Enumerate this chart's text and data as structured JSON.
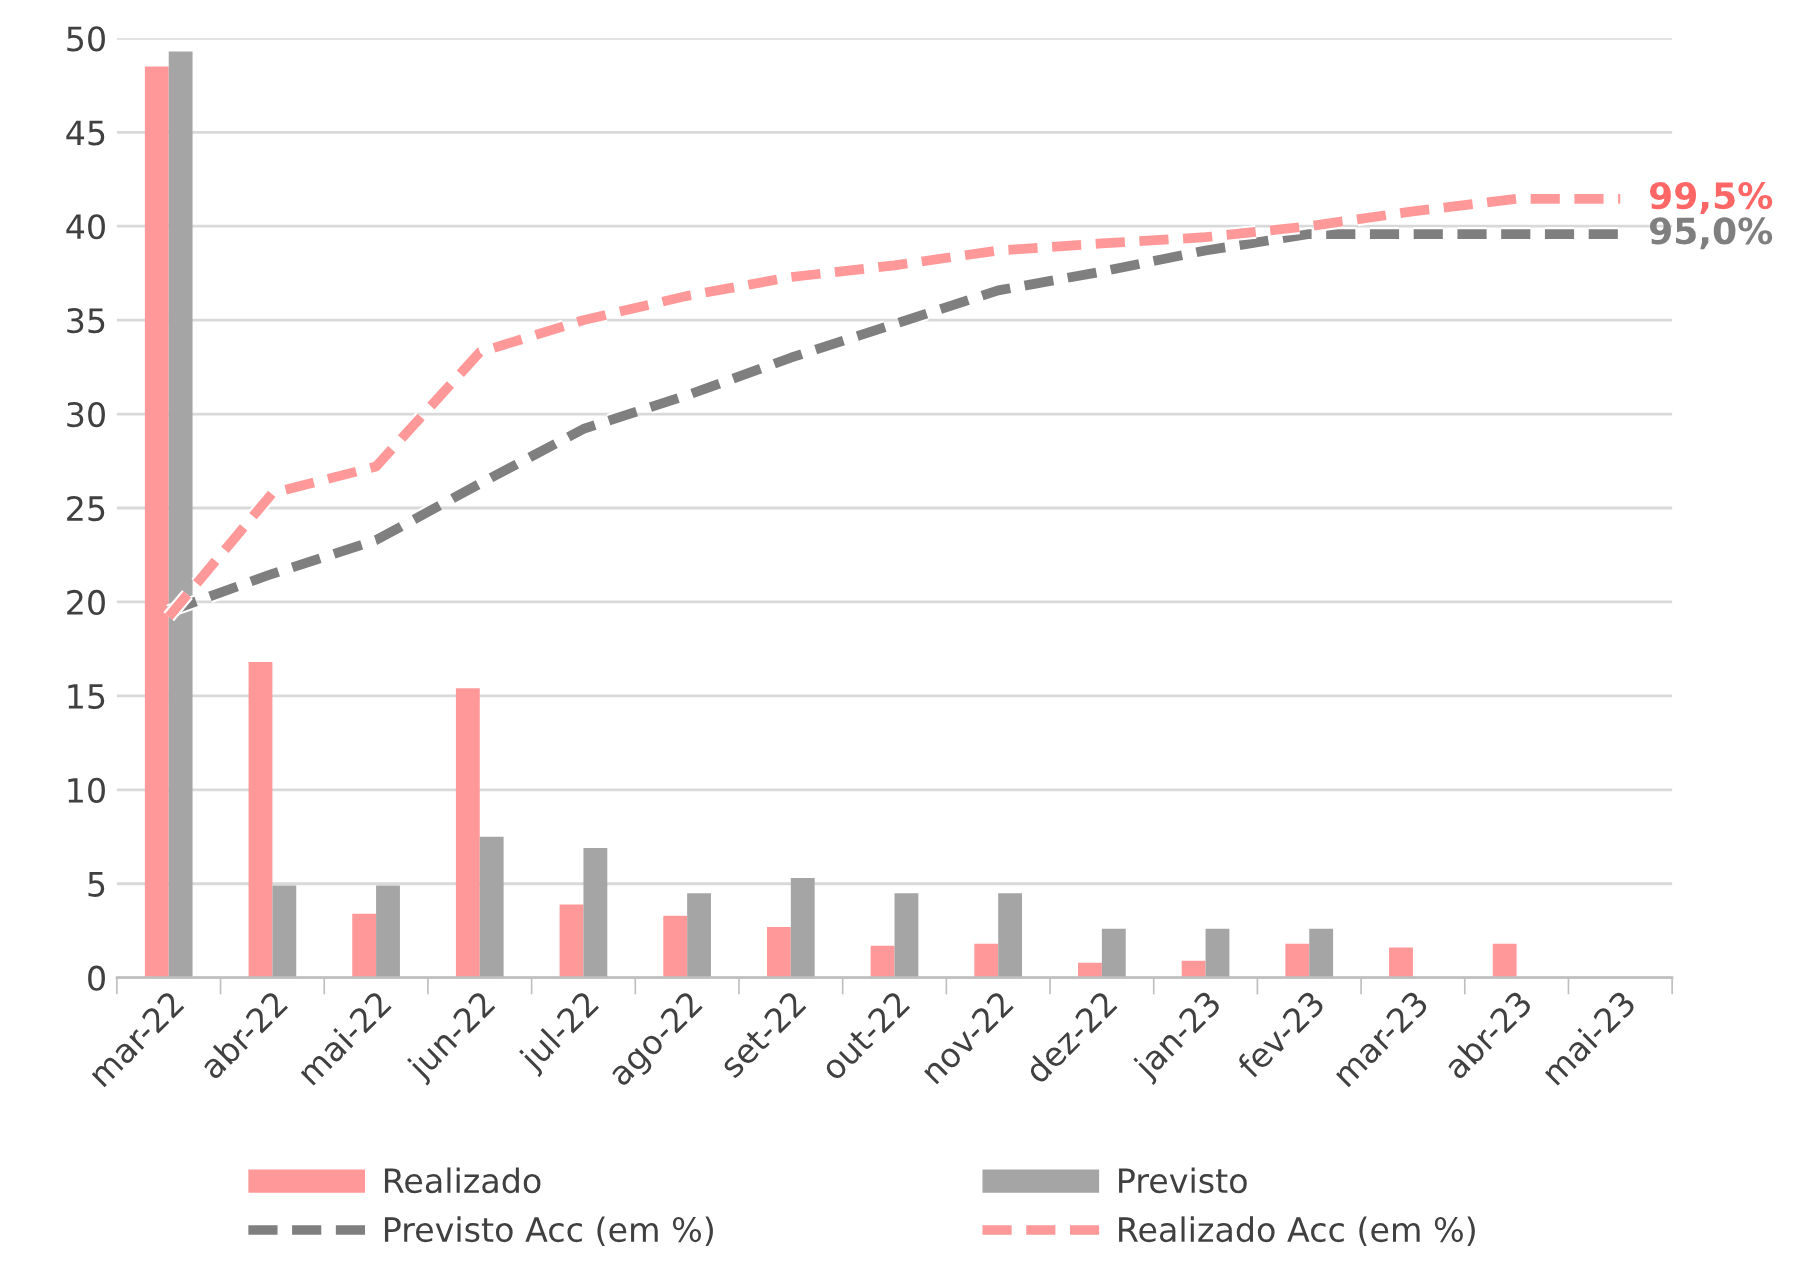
{
  "chart_data": {
    "type": "bar",
    "categories": [
      "mar-22",
      "abr-22",
      "mai-22",
      "jun-22",
      "jul-22",
      "ago-22",
      "set-22",
      "out-22",
      "nov-22",
      "dez-22",
      "jan-23",
      "fev-23",
      "mar-23",
      "abr-23",
      "mai-23"
    ],
    "series": [
      {
        "name": "Realizado",
        "color": "#ff9999",
        "values": [
          48.5,
          16.8,
          3.4,
          15.4,
          3.9,
          3.3,
          2.7,
          1.7,
          1.8,
          0.8,
          0.9,
          1.8,
          1.6,
          1.8,
          null
        ]
      },
      {
        "name": "Previsto",
        "color": "#a5a5a5",
        "values": [
          49.3,
          4.9,
          4.9,
          7.5,
          6.9,
          4.5,
          5.3,
          4.5,
          4.5,
          2.6,
          2.6,
          2.6,
          null,
          null,
          null
        ]
      },
      {
        "name": "Previsto Acc (em %)",
        "type": "line",
        "axis": "y2",
        "line_style": "dashed",
        "color": "#7f7f7f",
        "values": [
          46.8,
          51.6,
          55.9,
          63.1,
          70.1,
          74.4,
          79.2,
          83.5,
          87.8,
          90.2,
          92.9,
          95.0,
          95.0,
          95.0,
          95.0
        ],
        "value_labels": [
          null,
          null,
          null,
          null,
          null,
          null,
          null,
          null,
          null,
          null,
          null,
          null,
          null,
          null,
          "95,0%"
        ]
      },
      {
        "name": "Realizado Acc (em %)",
        "type": "line",
        "axis": "y2",
        "line_style": "dashed",
        "color": "#ff9999",
        "values": [
          46.1,
          61.9,
          65.3,
          79.9,
          84.0,
          87.1,
          89.5,
          91.0,
          92.9,
          93.8,
          94.6,
          96.0,
          97.9,
          99.5,
          99.5
        ],
        "value_labels": [
          null,
          null,
          null,
          null,
          null,
          null,
          null,
          null,
          null,
          null,
          null,
          null,
          null,
          null,
          "99,5%"
        ]
      }
    ],
    "ylim": [
      0,
      50
    ],
    "yticks": [
      0,
      5,
      10,
      15,
      20,
      25,
      30,
      35,
      40,
      45,
      50
    ],
    "y2lim": [
      0,
      120
    ],
    "grid": "y",
    "legend": "bottom"
  }
}
